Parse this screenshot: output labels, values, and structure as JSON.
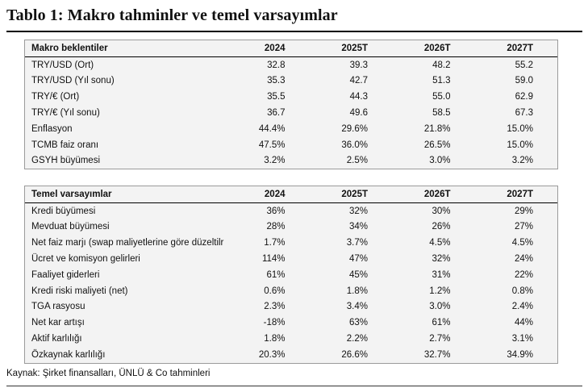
{
  "title": "Tablo 1: Makro tahminler ve temel varsayımlar",
  "macro": {
    "columns": [
      "Makro beklentiler",
      "2024",
      "2025T",
      "2026T",
      "2027T"
    ],
    "rows": [
      [
        "TRY/USD (Ort)",
        "32.8",
        "39.3",
        "48.2",
        "55.2"
      ],
      [
        "TRY/USD (Yıl sonu)",
        "35.3",
        "42.7",
        "51.3",
        "59.0"
      ],
      [
        "TRY/€ (Ort)",
        "35.5",
        "44.3",
        "55.0",
        "62.9"
      ],
      [
        "TRY/€ (Yıl sonu)",
        "36.7",
        "49.6",
        "58.5",
        "67.3"
      ],
      [
        "Enflasyon",
        "44.4%",
        "29.6%",
        "21.8%",
        "15.0%"
      ],
      [
        "TCMB faiz oranı",
        "47.5%",
        "36.0%",
        "26.5%",
        "15.0%"
      ],
      [
        "GSYH büyümesi",
        "3.2%",
        "2.5%",
        "3.0%",
        "3.2%"
      ]
    ]
  },
  "assumptions": {
    "columns": [
      "Temel varsayımlar",
      "2024",
      "2025T",
      "2026T",
      "2027T"
    ],
    "rows": [
      [
        "Kredi büyümesi",
        "36%",
        "32%",
        "30%",
        "29%"
      ],
      [
        "Mevduat büyümesi",
        "28%",
        "34%",
        "26%",
        "27%"
      ],
      [
        "Net faiz marjı (swap maliyetlerine göre düzeltilr",
        "1.7%",
        "3.7%",
        "4.5%",
        "4.5%"
      ],
      [
        "Ücret ve komisyon gelirleri",
        "114%",
        "47%",
        "32%",
        "24%"
      ],
      [
        "Faaliyet giderleri",
        "61%",
        "45%",
        "31%",
        "22%"
      ],
      [
        "Kredi riski maliyeti (net)",
        "0.6%",
        "1.8%",
        "1.2%",
        "0.8%"
      ],
      [
        "TGA rasyosu",
        "2.3%",
        "3.4%",
        "3.0%",
        "2.4%"
      ],
      [
        "Net kar artışı",
        "-18%",
        "63%",
        "61%",
        "44%"
      ],
      [
        "Aktif karlılığı",
        "1.8%",
        "2.2%",
        "2.7%",
        "3.1%"
      ],
      [
        "Özkaynak karlılığı",
        "20.3%",
        "26.6%",
        "32.7%",
        "34.9%"
      ]
    ]
  },
  "source": "Kaynak: Şirket finansalları, ÜNLÜ & Co tahminleri"
}
